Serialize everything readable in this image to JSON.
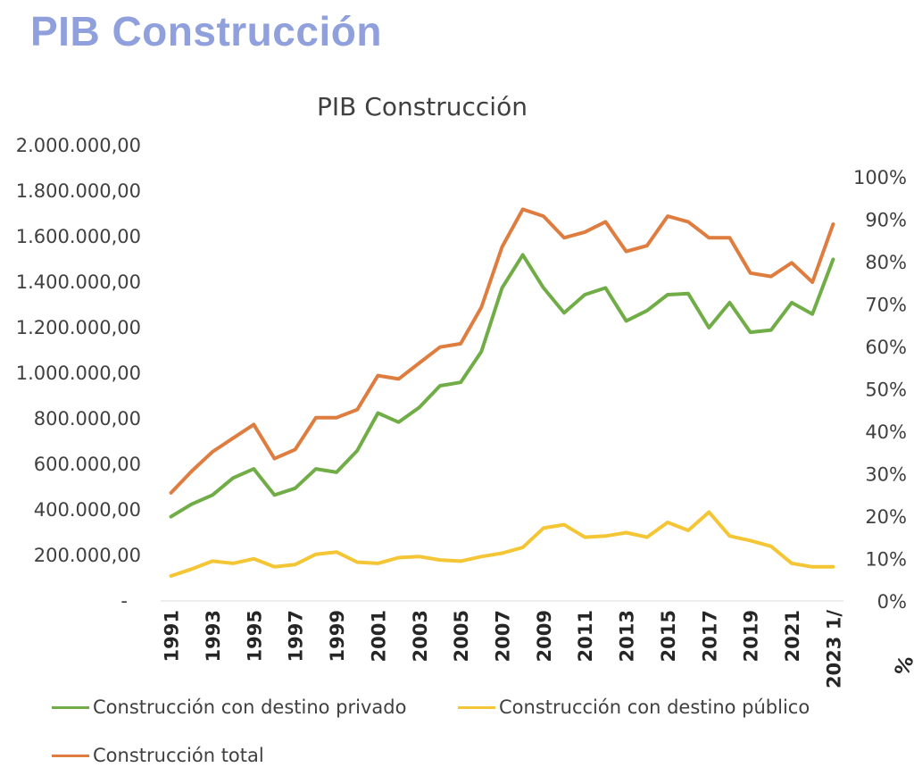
{
  "page_heading": "PIB Construcción",
  "colors": {
    "heading": "#8fa0dc",
    "privado": "#70ad47",
    "publico": "#f4c534",
    "total": "#de7d3f",
    "axis_text": "#404040"
  },
  "chart_data": {
    "type": "line",
    "title": "PIB Construcción",
    "xlabel": "",
    "ylabel": "",
    "x": [
      "1991",
      "1992",
      "1993",
      "1994",
      "1995",
      "1996",
      "1997",
      "1998",
      "1999",
      "2000",
      "2001",
      "2002",
      "2003",
      "2004",
      "2005",
      "2006",
      "2007",
      "2008",
      "2009",
      "2010",
      "2011",
      "2012",
      "2013",
      "2014",
      "2015",
      "2016",
      "2017",
      "2018",
      "2019",
      "2020",
      "2021",
      "2022",
      "2023 1/"
    ],
    "x_tick_labels": [
      "1991",
      "",
      "1993",
      "",
      "1995",
      "",
      "1997",
      "",
      "1999",
      "",
      "2001",
      "",
      "2003",
      "",
      "2005",
      "",
      "2007",
      "",
      "2009",
      "",
      "2011",
      "",
      "2013",
      "",
      "2015",
      "",
      "2017",
      "",
      "2019",
      "",
      "2021",
      "",
      "2023 1/"
    ],
    "ylim": [
      0,
      2000000
    ],
    "y_tick_labels": [
      "-",
      "200.000,00",
      "400.000,00",
      "600.000,00",
      "800.000,00",
      "1.000.000,00",
      "1.200.000,00",
      "1.400.000,00",
      "1.600.000,00",
      "1.800.000,00",
      "2.000.000,00"
    ],
    "y2lim": [
      0,
      1.0
    ],
    "y2_tick_labels": [
      "0%",
      "10%",
      "20%",
      "30%",
      "40%",
      "50%",
      "60%",
      "70%",
      "80%",
      "90%",
      "100%"
    ],
    "legend_position": "bottom",
    "grid": false,
    "series": [
      {
        "name": "Construcción con destino privado",
        "color_key": "privado",
        "values": [
          370000,
          425000,
          465000,
          540000,
          580000,
          465000,
          495000,
          580000,
          565000,
          660000,
          825000,
          785000,
          850000,
          945000,
          960000,
          1095000,
          1375000,
          1520000,
          1375000,
          1265000,
          1345000,
          1375000,
          1230000,
          1275000,
          1345000,
          1350000,
          1200000,
          1310000,
          1180000,
          1190000,
          1310000,
          1260000,
          1500000
        ]
      },
      {
        "name": "Construcción con destino público",
        "color_key": "publico",
        "values": [
          110000,
          140000,
          175000,
          165000,
          185000,
          150000,
          160000,
          205000,
          215000,
          170000,
          165000,
          190000,
          195000,
          180000,
          175000,
          195000,
          210000,
          235000,
          320000,
          335000,
          280000,
          285000,
          300000,
          280000,
          345000,
          310000,
          390000,
          285000,
          265000,
          240000,
          165000,
          150000,
          150000
        ]
      },
      {
        "name": "Construcción total",
        "color_key": "total",
        "values": [
          475000,
          570000,
          655000,
          715000,
          775000,
          625000,
          665000,
          805000,
          805000,
          840000,
          990000,
          975000,
          1045000,
          1115000,
          1130000,
          1290000,
          1555000,
          1720000,
          1690000,
          1595000,
          1620000,
          1665000,
          1535000,
          1560000,
          1690000,
          1665000,
          1595000,
          1595000,
          1440000,
          1425000,
          1485000,
          1400000,
          1655000
        ]
      }
    ],
    "cutoff_label": "%"
  }
}
